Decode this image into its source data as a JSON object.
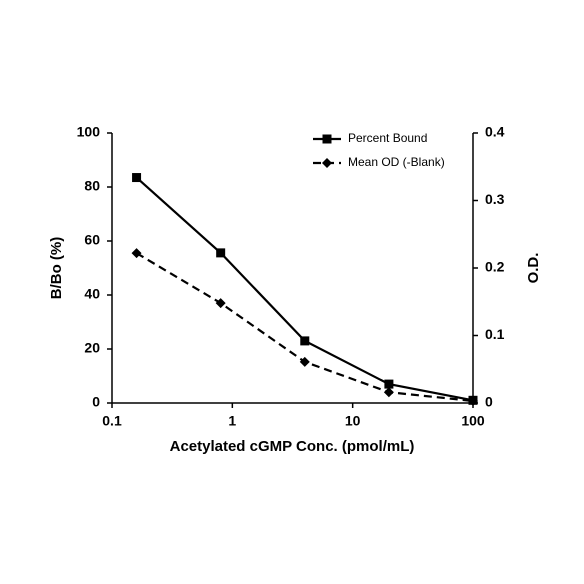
{
  "chart_data": {
    "type": "line",
    "x_label": "Acetylated cGMP Conc. (pmol/mL)",
    "y_label": "B/Bo (%)",
    "y2_label": "O.D.",
    "x": [
      0.16,
      0.8,
      4,
      20,
      100
    ],
    "xlim": [
      0.1,
      100
    ],
    "xticks": [
      0.1,
      1,
      10,
      100
    ],
    "xscale": "log",
    "ylim": [
      0,
      100
    ],
    "yticks": [
      0,
      20,
      40,
      60,
      80,
      100
    ],
    "y2lim": [
      0,
      0.4
    ],
    "y2ticks": [
      0,
      0.1,
      0.2,
      0.3,
      0.4
    ],
    "legend": "upper right",
    "series": [
      {
        "name": "Percent Bound",
        "color": "#000000",
        "style": "solid",
        "marker": "square",
        "values": [
          83.5,
          55.6,
          23,
          7,
          1
        ]
      },
      {
        "name": "Mean OD (-Blank)",
        "color": "#000000",
        "style": "dashed",
        "marker": "diamond",
        "axis": "y2",
        "values": [
          0.222,
          0.148,
          0.061,
          0.016,
          0.003
        ]
      }
    ]
  }
}
